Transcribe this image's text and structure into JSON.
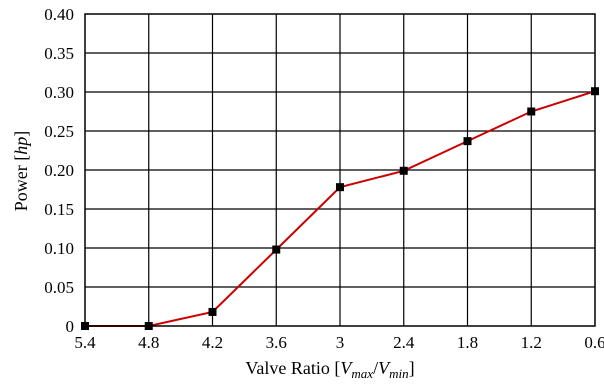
{
  "chart_data": {
    "type": "line",
    "xlabel": {
      "prefix": "Valve Ratio [",
      "v1": "V",
      "sub1": "max",
      "slash": "/",
      "v2": "V",
      "sub2": "min",
      "suffix": "]"
    },
    "ylabel": {
      "prefix": "Power [",
      "unit": "hp",
      "suffix": "]"
    },
    "x_tick_labels": [
      "5.4",
      "4.8",
      "4.2",
      "3.6",
      "3",
      "2.4",
      "1.8",
      "1.2",
      "0.6"
    ],
    "y_tick_labels": [
      "0",
      "0.05",
      "0.10",
      "0.15",
      "0.20",
      "0.25",
      "0.30",
      "0.35",
      "0.40"
    ],
    "x_reversed": true,
    "xlim": [
      5.4,
      0.6
    ],
    "ylim": [
      0,
      0.4
    ],
    "grid": true,
    "series": [
      {
        "x": [
          5.4,
          4.8,
          4.2,
          3.6,
          3.0,
          2.4,
          1.8,
          1.2,
          0.6
        ],
        "y": [
          0.0,
          0.0,
          0.018,
          0.098,
          0.178,
          0.199,
          0.237,
          0.275,
          0.301
        ],
        "line_color": "#cc0000",
        "marker_color": "#000000",
        "marker": "square"
      }
    ]
  }
}
